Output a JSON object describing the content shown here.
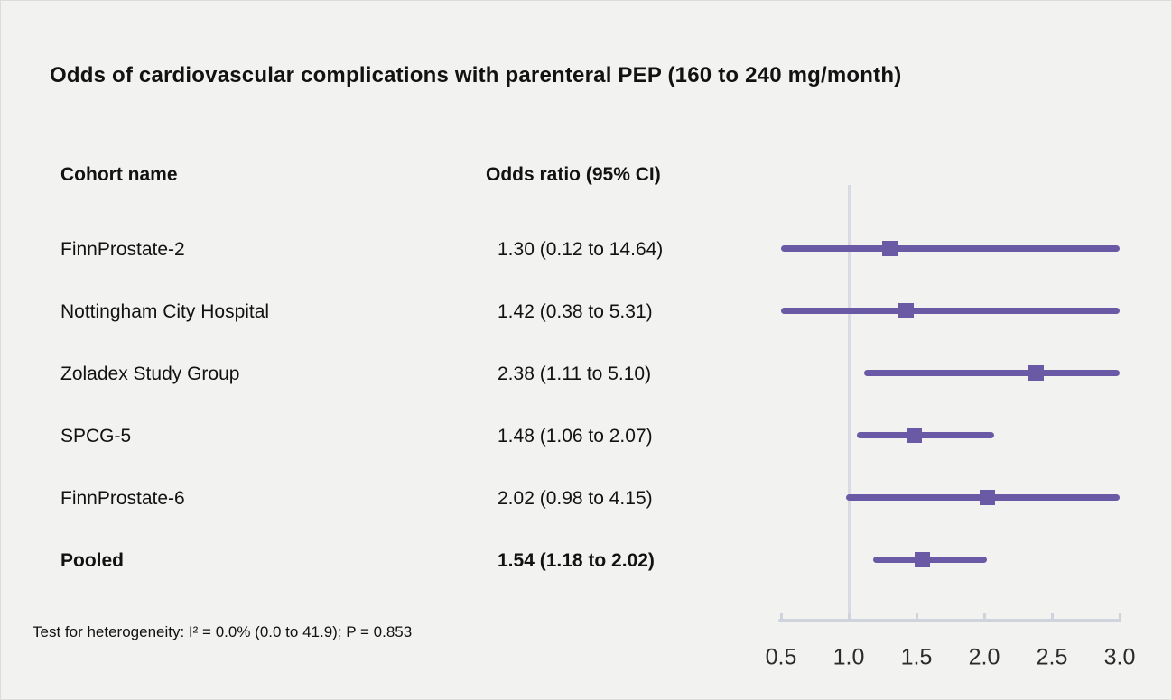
{
  "figure": {
    "title": "Odds of cardiovascular complications with parenteral PEP (160 to 240 mg/month)",
    "column_headers": {
      "cohort": "Cohort name",
      "odds_ratio": "Odds ratio (95% CI)"
    },
    "footnote": "Test for heterogeneity: I² = 0.0% (0.0 to 41.9); P = 0.853"
  },
  "colors": {
    "estimate_purple": "#6a59a5",
    "reference_line": "#d8dbe2",
    "axis": "#cfd4dc",
    "background": "#f2f2f0",
    "text": "#121212"
  },
  "chart_data": {
    "type": "forest",
    "title": "Odds of cardiovascular complications with parenteral PEP (160 to 240 mg/month)",
    "xlabel": "Odds ratio (95% CI)",
    "xlim": [
      0.5,
      3.0
    ],
    "x_ticks": [
      "0.5",
      "1.0",
      "1.5",
      "2.0",
      "2.5",
      "3.0"
    ],
    "reference_line_x": 1.0,
    "grid": false,
    "legend": "none",
    "ci_clipped_to_xlim": true,
    "rows": [
      {
        "label": "FinnProstate-2",
        "or_text": "1.30 (0.12 to 14.64)",
        "estimate": 1.3,
        "lower": 0.12,
        "upper": 14.64,
        "bold": false
      },
      {
        "label": "Nottingham City Hospital",
        "or_text": "1.42 (0.38 to 5.31)",
        "estimate": 1.42,
        "lower": 0.38,
        "upper": 5.31,
        "bold": false
      },
      {
        "label": "Zoladex Study Group",
        "or_text": "2.38 (1.11 to 5.10)",
        "estimate": 2.38,
        "lower": 1.11,
        "upper": 5.1,
        "bold": false
      },
      {
        "label": "SPCG-5",
        "or_text": "1.48 (1.06 to 2.07)",
        "estimate": 1.48,
        "lower": 1.06,
        "upper": 2.07,
        "bold": false
      },
      {
        "label": "FinnProstate-6",
        "or_text": "2.02 (0.98 to 4.15)",
        "estimate": 2.02,
        "lower": 0.98,
        "upper": 4.15,
        "bold": false
      },
      {
        "label": "Pooled",
        "or_text": "1.54 (1.18 to 2.02)",
        "estimate": 1.54,
        "lower": 1.18,
        "upper": 2.02,
        "bold": true
      }
    ],
    "heterogeneity_note": "Test for heterogeneity: I² = 0.0% (0.0 to 41.9); P = 0.853"
  }
}
